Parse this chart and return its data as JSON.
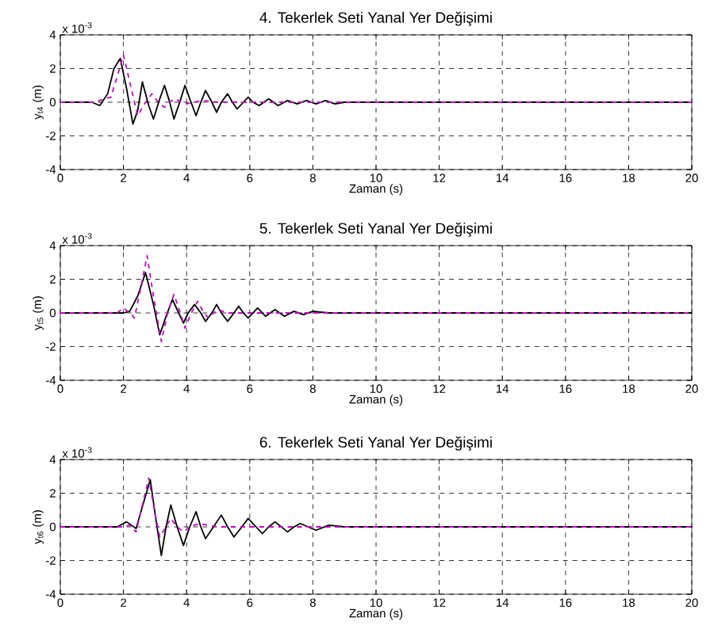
{
  "chart_data": [
    {
      "type": "line",
      "title": "4. Tekerlek Seti Yanal Yer Değişimi",
      "xlabel": "Zaman (s)",
      "ylabel": "y$_{t4}$ (m)",
      "annotations": [
        "x 10$^{-3}$"
      ],
      "xlim": [
        0,
        20
      ],
      "ylim": [
        -4,
        4
      ],
      "xticks": [
        0,
        2,
        4,
        6,
        8,
        10,
        12,
        14,
        16,
        18,
        20
      ],
      "yticks": [
        -4,
        -2,
        0,
        2,
        4
      ],
      "grid": true,
      "series": [
        {
          "color": "#000000",
          "line_style": "solid",
          "x": [
            0,
            1.0,
            1.25,
            1.5,
            1.7,
            1.9,
            2.1,
            2.3,
            2.45,
            2.6,
            2.8,
            2.95,
            3.15,
            3.3,
            3.45,
            3.6,
            3.8,
            3.95,
            4.1,
            4.3,
            4.45,
            4.6,
            4.8,
            4.95,
            5.1,
            5.3,
            5.45,
            5.6,
            5.8,
            5.95,
            6.1,
            6.3,
            6.6,
            6.9,
            7.2,
            7.5,
            7.8,
            8.1,
            8.4,
            8.7,
            9.0,
            10,
            12,
            14,
            16,
            18,
            20
          ],
          "values": [
            0,
            0,
            -0.2,
            0.5,
            2.0,
            2.6,
            0.8,
            -1.3,
            -0.5,
            1.2,
            -0.2,
            -1.0,
            0.2,
            1.0,
            0.1,
            -1.0,
            0.1,
            1.0,
            0.2,
            -0.8,
            0,
            0.7,
            0,
            -0.6,
            0,
            0.5,
            0,
            -0.4,
            0,
            0.3,
            0,
            -0.2,
            0.2,
            -0.2,
            0.1,
            -0.1,
            0.1,
            -0.1,
            0.1,
            -0.1,
            0,
            0,
            0,
            0,
            0,
            0,
            0
          ]
        },
        {
          "color": "#cc00cc",
          "line_style": "dashed",
          "x": [
            0,
            1.1,
            1.4,
            1.6,
            1.8,
            2.0,
            2.2,
            2.45,
            2.7,
            2.9,
            3.1,
            3.3,
            3.6,
            4.0,
            4.5,
            5,
            6,
            8,
            10,
            20
          ],
          "values": [
            0,
            0,
            0.2,
            0.3,
            1.5,
            2.8,
            1.2,
            -0.8,
            0,
            0.5,
            0,
            -0.3,
            0.2,
            -0.1,
            0.1,
            0,
            0,
            0,
            0,
            0
          ]
        }
      ]
    },
    {
      "type": "line",
      "title": "5. Tekerlek Seti Yanal Yer Değişimi",
      "xlabel": "Zaman (s)",
      "ylabel": "y$_{t5}$ (m)",
      "annotations": [
        "x 10$^{-3}$"
      ],
      "xlim": [
        0,
        20
      ],
      "ylim": [
        -4,
        4
      ],
      "xticks": [
        0,
        2,
        4,
        6,
        8,
        10,
        12,
        14,
        16,
        18,
        20
      ],
      "yticks": [
        -4,
        -2,
        0,
        2,
        4
      ],
      "grid": true,
      "series": [
        {
          "color": "#000000",
          "line_style": "solid",
          "x": [
            0,
            2.0,
            2.2,
            2.45,
            2.7,
            2.95,
            3.15,
            3.35,
            3.55,
            3.75,
            3.9,
            4.05,
            4.25,
            4.45,
            4.6,
            4.8,
            4.95,
            5.1,
            5.3,
            5.5,
            5.65,
            5.8,
            5.95,
            6.1,
            6.25,
            6.5,
            6.8,
            7.1,
            7.4,
            7.7,
            8.0,
            8.5,
            9,
            10,
            20
          ],
          "values": [
            0,
            0,
            0.1,
            1.0,
            2.4,
            0.5,
            -1.3,
            -0.2,
            0.8,
            0,
            -0.6,
            0,
            0.5,
            0,
            -0.5,
            0,
            0.5,
            0,
            -0.5,
            0,
            0.4,
            0,
            -0.3,
            0,
            0.3,
            -0.2,
            0.2,
            -0.2,
            0.1,
            -0.1,
            0.1,
            0,
            0,
            0,
            0
          ]
        },
        {
          "color": "#cc00cc",
          "line_style": "dashed",
          "x": [
            0,
            1.8,
            2.0,
            2.2,
            2.35,
            2.55,
            2.75,
            2.95,
            3.2,
            3.4,
            3.6,
            3.8,
            3.95,
            4.15,
            4.35,
            4.55,
            4.7,
            4.85,
            5.0,
            5.3,
            6,
            10,
            20
          ],
          "values": [
            0,
            0,
            0.3,
            0,
            -0.3,
            1.5,
            3.4,
            1.0,
            -1.7,
            0,
            1.1,
            0,
            -0.9,
            0,
            0.7,
            0,
            -0.3,
            0,
            0.2,
            0,
            0,
            0,
            0
          ]
        }
      ]
    },
    {
      "type": "line",
      "title": "6. Tekerlek Seti Yanal Yer Değişimi",
      "xlabel": "Zaman (s)",
      "ylabel": "y$_{t6}$ (m)",
      "annotations": [
        "x 10$^{-3}$"
      ],
      "xlim": [
        0,
        20
      ],
      "ylim": [
        -4,
        4
      ],
      "xticks": [
        0,
        2,
        4,
        6,
        8,
        10,
        12,
        14,
        16,
        18,
        20
      ],
      "yticks": [
        -4,
        -2,
        0,
        2,
        4
      ],
      "grid": true,
      "series": [
        {
          "color": "#000000",
          "line_style": "solid",
          "x": [
            0,
            1.8,
            2.1,
            2.4,
            2.6,
            2.85,
            3.0,
            3.2,
            3.35,
            3.5,
            3.7,
            3.9,
            4.1,
            4.3,
            4.45,
            4.6,
            4.85,
            5.1,
            5.3,
            5.5,
            5.75,
            5.95,
            6.2,
            6.4,
            6.6,
            6.8,
            7.0,
            7.2,
            7.4,
            7.6,
            7.85,
            8.1,
            8.5,
            9,
            10,
            20
          ],
          "values": [
            0,
            0,
            0.3,
            -0.1,
            1.2,
            2.8,
            0.8,
            -1.7,
            0,
            1.3,
            0,
            -1.1,
            0,
            0.9,
            0,
            -0.7,
            0,
            0.7,
            0,
            -0.6,
            0,
            0.5,
            0,
            -0.4,
            0,
            0.3,
            0,
            -0.3,
            0,
            0.2,
            0,
            -0.2,
            0.1,
            0,
            0,
            0
          ]
        },
        {
          "color": "#cc00cc",
          "line_style": "dashed",
          "x": [
            0,
            2.0,
            2.2,
            2.4,
            2.6,
            2.8,
            3.0,
            3.15,
            3.35,
            3.5,
            3.7,
            3.9,
            4.1,
            4.4,
            5,
            6,
            10,
            20
          ],
          "values": [
            0,
            0,
            0.1,
            -0.3,
            1.3,
            2.9,
            0.8,
            -0.6,
            0,
            0.5,
            0,
            -0.3,
            0,
            0.2,
            0,
            0,
            0,
            0
          ]
        }
      ]
    }
  ]
}
